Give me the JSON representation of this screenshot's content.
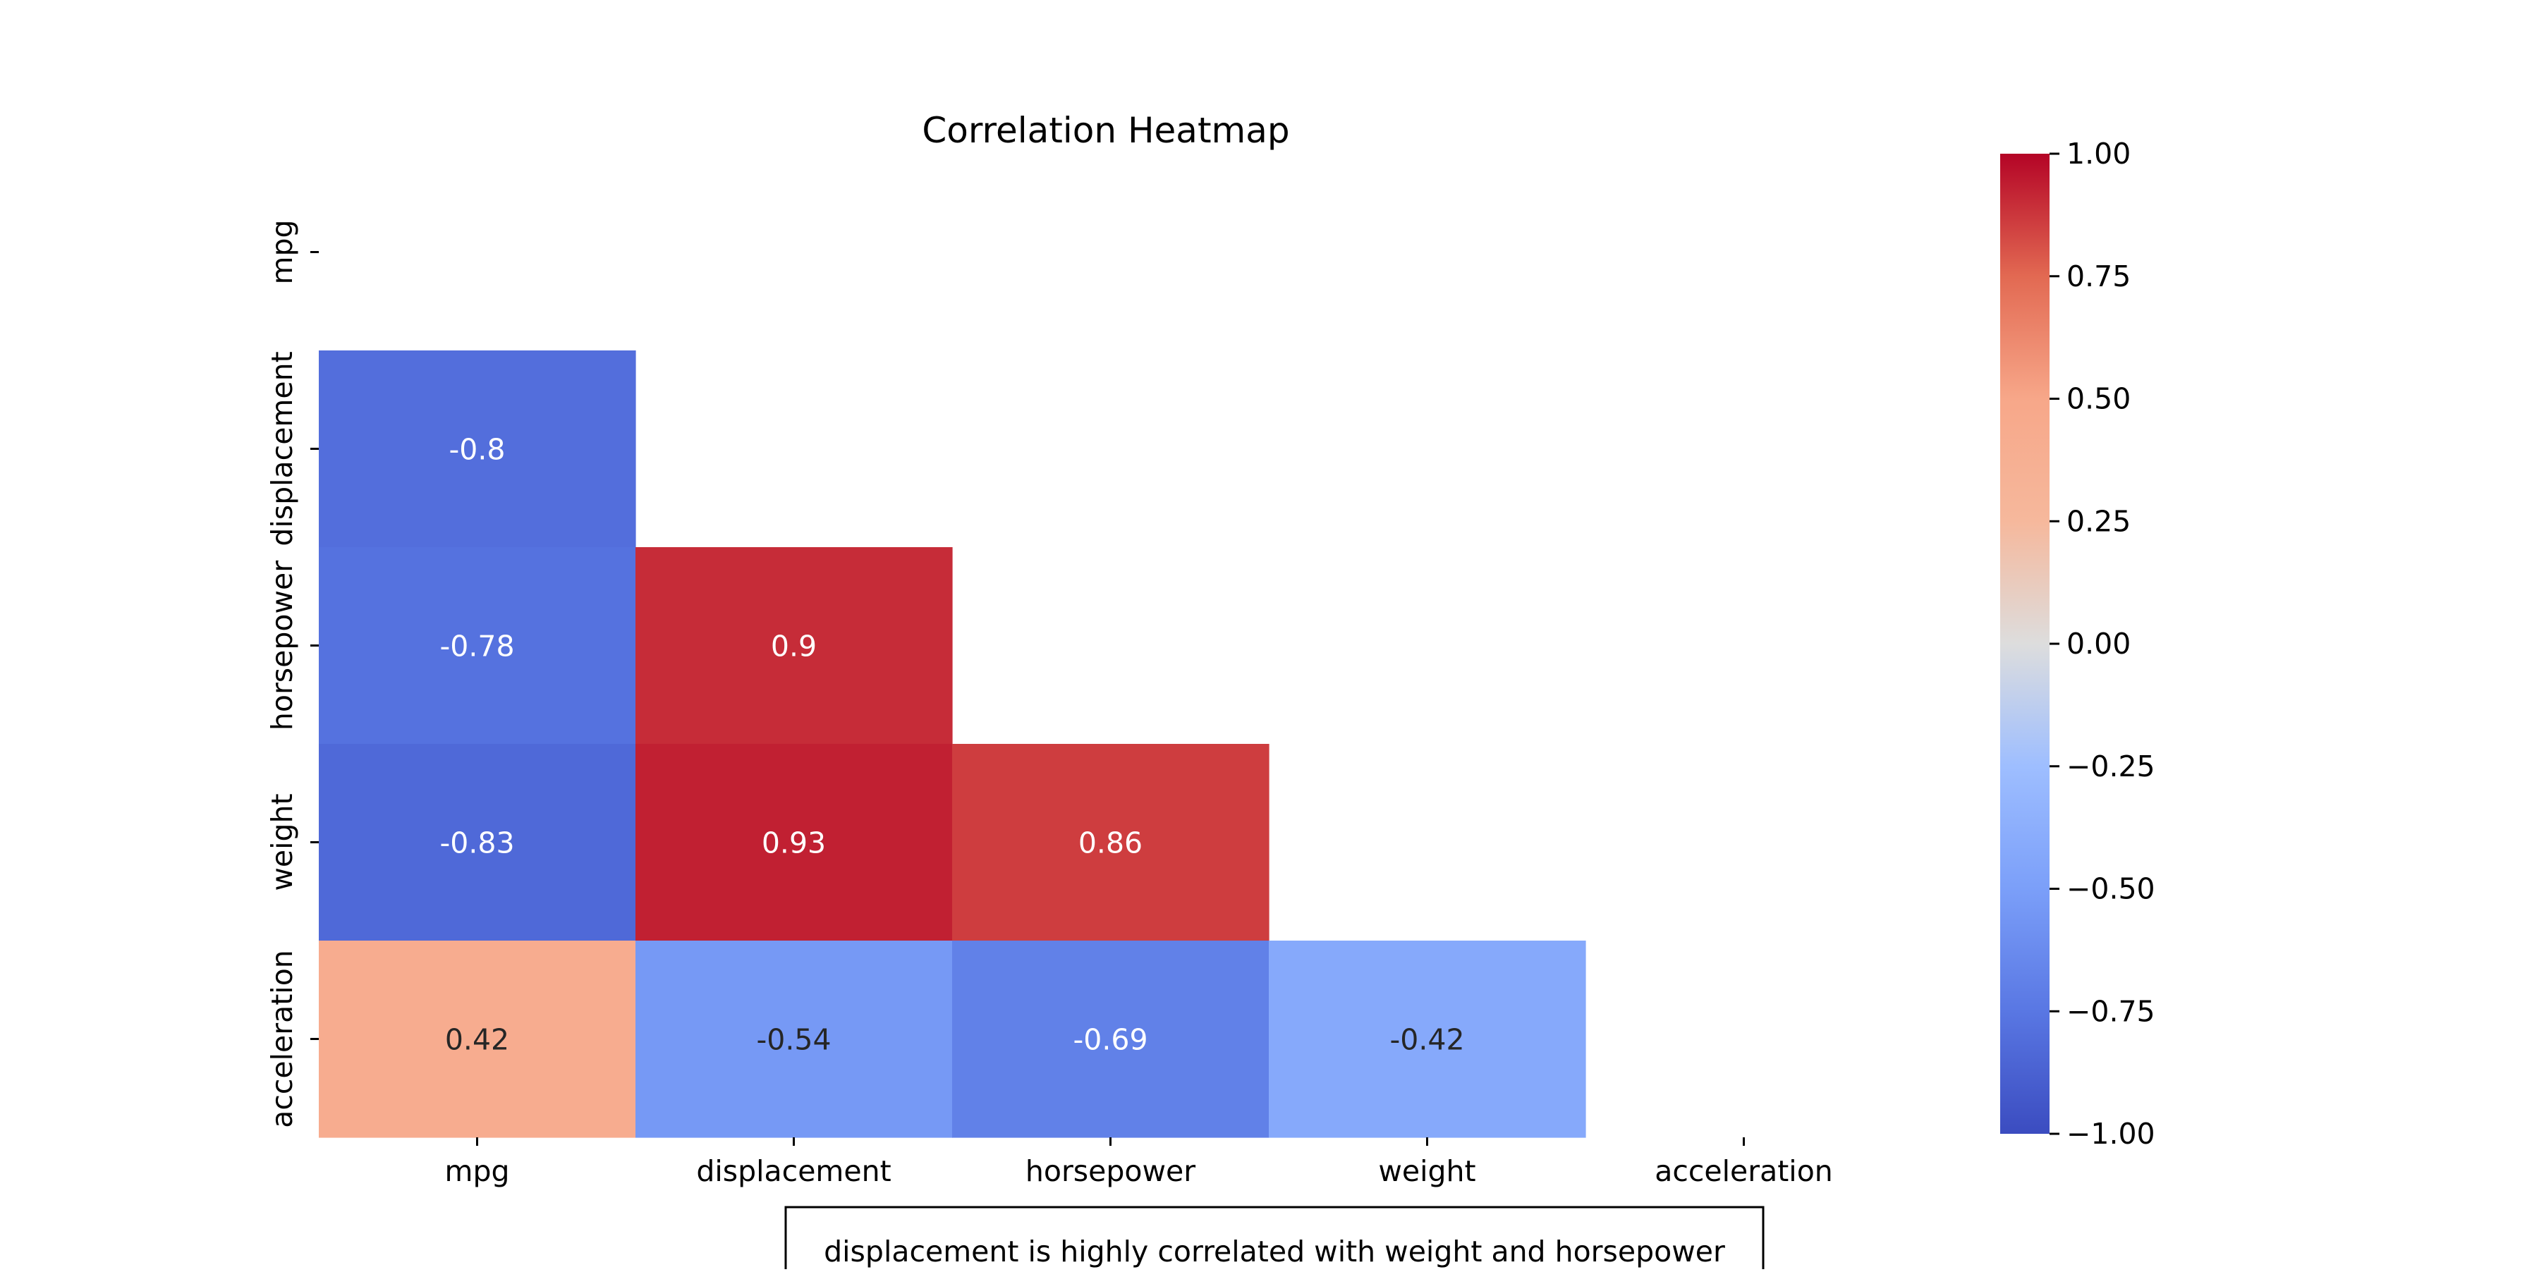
{
  "chart_data": {
    "type": "heatmap",
    "title": "Correlation Heatmap",
    "x_categories": [
      "mpg",
      "displacement",
      "horsepower",
      "weight",
      "acceleration"
    ],
    "y_categories": [
      "mpg",
      "displacement",
      "horsepower",
      "weight",
      "acceleration"
    ],
    "mask": "upper-triangle-and-diagonal",
    "cells": [
      {
        "row": "displacement",
        "col": "mpg",
        "value": -0.8,
        "label": "-0.8"
      },
      {
        "row": "horsepower",
        "col": "mpg",
        "value": -0.78,
        "label": "-0.78"
      },
      {
        "row": "horsepower",
        "col": "displacement",
        "value": 0.9,
        "label": "0.9"
      },
      {
        "row": "weight",
        "col": "mpg",
        "value": -0.83,
        "label": "-0.83"
      },
      {
        "row": "weight",
        "col": "displacement",
        "value": 0.93,
        "label": "0.93"
      },
      {
        "row": "weight",
        "col": "horsepower",
        "value": 0.86,
        "label": "0.86"
      },
      {
        "row": "acceleration",
        "col": "mpg",
        "value": 0.42,
        "label": "0.42"
      },
      {
        "row": "acceleration",
        "col": "displacement",
        "value": -0.54,
        "label": "-0.54"
      },
      {
        "row": "acceleration",
        "col": "horsepower",
        "value": -0.69,
        "label": "-0.69"
      },
      {
        "row": "acceleration",
        "col": "weight",
        "value": -0.42,
        "label": "-0.42"
      }
    ],
    "colorbar": {
      "colormap": "coolwarm",
      "range": [
        -1.0,
        1.0
      ],
      "tick_values": [
        1.0,
        0.75,
        0.5,
        0.25,
        0.0,
        -0.25,
        -0.5,
        -0.75,
        -1.0
      ],
      "tick_labels": [
        "1.00",
        "0.75",
        "0.50",
        "0.25",
        "0.00",
        "−0.25",
        "−0.50",
        "−0.75",
        "−1.00"
      ]
    },
    "annotation": "displacement is highly correlated with weight and horsepower",
    "grid": false,
    "legend": "colorbar-right"
  }
}
